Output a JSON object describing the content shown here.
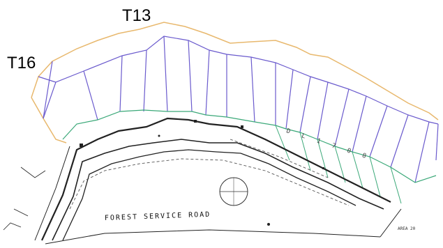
{
  "labels": {
    "tract_a": "T13",
    "tract_b": "T16",
    "road": "FOREST SERVICE ROAD",
    "area_note": "AREA 20",
    "lot_text": "D L 1 7 0 8"
  },
  "colors": {
    "upper_boundary": "#e8b86d",
    "lot_lines": "#6a5acd",
    "middle_boundary": "#3aa878",
    "survey_lines": "#222222"
  }
}
